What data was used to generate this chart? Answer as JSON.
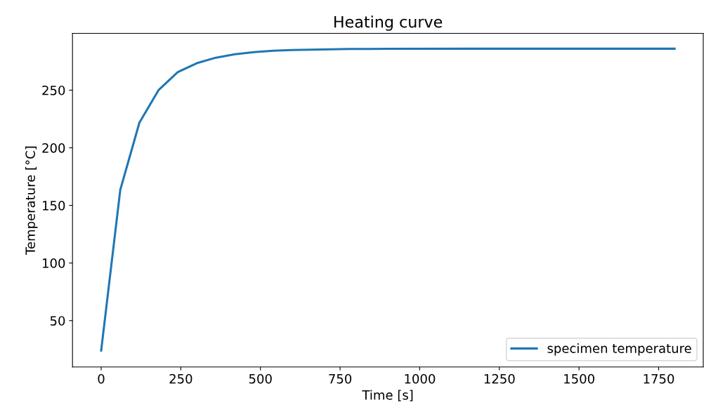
{
  "chart_data": {
    "type": "line",
    "title": "Heating curve",
    "xlabel": "Time [s]",
    "ylabel": "Temperature [°C]",
    "x": [
      0,
      60,
      120,
      180,
      240,
      300,
      360,
      420,
      480,
      540,
      600,
      660,
      720,
      780,
      840,
      900,
      1200,
      1500,
      1800
    ],
    "series": [
      {
        "name": "specimen temperature",
        "color": "#1f77b4",
        "values": [
          24,
          163.5,
          221.8,
          250,
          265.6,
          273.4,
          278.2,
          281.2,
          283,
          284.2,
          284.8,
          285.2,
          285.5,
          285.7,
          285.8,
          285.9,
          286,
          286,
          286
        ]
      }
    ],
    "xlim": [
      -90,
      1890
    ],
    "ylim": [
      9.8,
      299.3
    ],
    "xticks": [
      0,
      250,
      500,
      750,
      1000,
      1250,
      1500,
      1750
    ],
    "yticks": [
      50,
      100,
      150,
      200,
      250
    ],
    "legend": "lower right",
    "grid": false,
    "marker": "none",
    "line_style": "solid"
  }
}
